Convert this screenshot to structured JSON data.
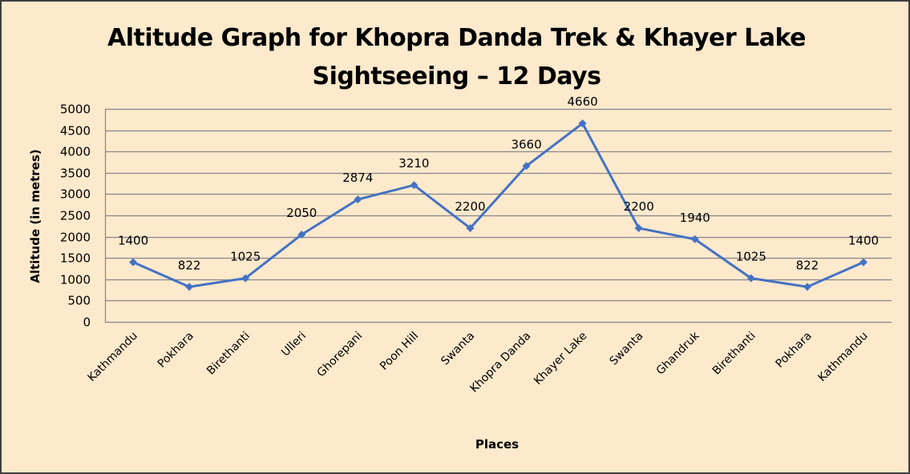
{
  "chart_data": {
    "type": "line",
    "title": "Altitude Graph for Khopra Danda Trek & Khayer Lake Sightseeing – 12 Days",
    "title_lines": [
      "Altitude Graph for Khopra Danda Trek & Khayer Lake",
      "Sightseeing – 12 Days"
    ],
    "xlabel": "Places",
    "ylabel": "Altitude (in metres)",
    "categories": [
      "Kathmandu",
      "Pokhara",
      "Birethanti",
      "Ulleri",
      "Ghorepani",
      "Poon Hill",
      "Swanta",
      "Khopra Danda",
      "Khayer Lake",
      "Swanta",
      "Ghandruk",
      "Birethanti",
      "Pokhara",
      "Kathmandu"
    ],
    "series": [
      {
        "name": "Altitude",
        "values": [
          1400,
          822,
          1025,
          2050,
          2874,
          3210,
          2200,
          3660,
          4660,
          2200,
          1940,
          1025,
          822,
          1400
        ],
        "color": "#4472C4",
        "marker": "diamond"
      }
    ],
    "ylim": [
      0,
      5000
    ],
    "yticks": [
      0,
      500,
      1000,
      1500,
      2000,
      2500,
      3000,
      3500,
      4000,
      4500,
      5000
    ],
    "grid": {
      "horizontal": true,
      "vertical": false
    },
    "legend": "none",
    "data_labels": true,
    "background_color": "#FDE9CC",
    "gridline_color": "#868686"
  }
}
